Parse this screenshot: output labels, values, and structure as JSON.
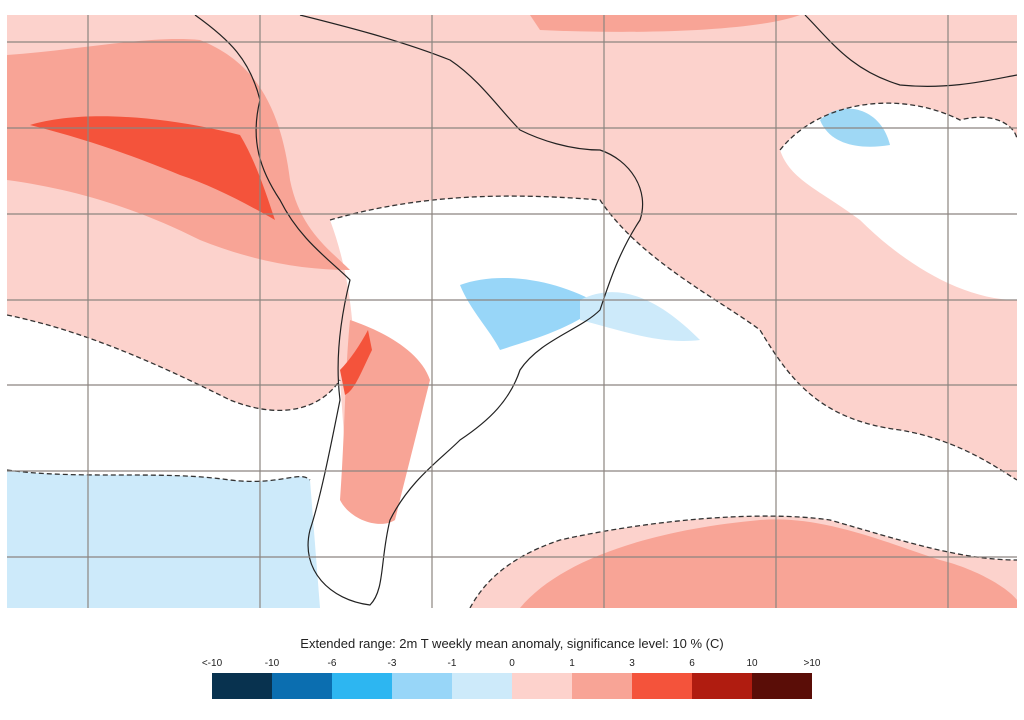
{
  "title": "Extended range: 2m T weekly mean anomaly, significance level: 10 % (C)",
  "legend": {
    "labels": [
      "<-10",
      "-10",
      "-6",
      "-3",
      "-1",
      "0",
      "1",
      "3",
      "6",
      "10",
      ">10"
    ],
    "colors": [
      "#08324f",
      "#0b6eb0",
      "#2db6f1",
      "#98d6f8",
      "#cdeafa",
      "#fdd2cc",
      "#f8a496",
      "#f4533b",
      "#b01c10",
      "#5a0d07"
    ]
  }
}
